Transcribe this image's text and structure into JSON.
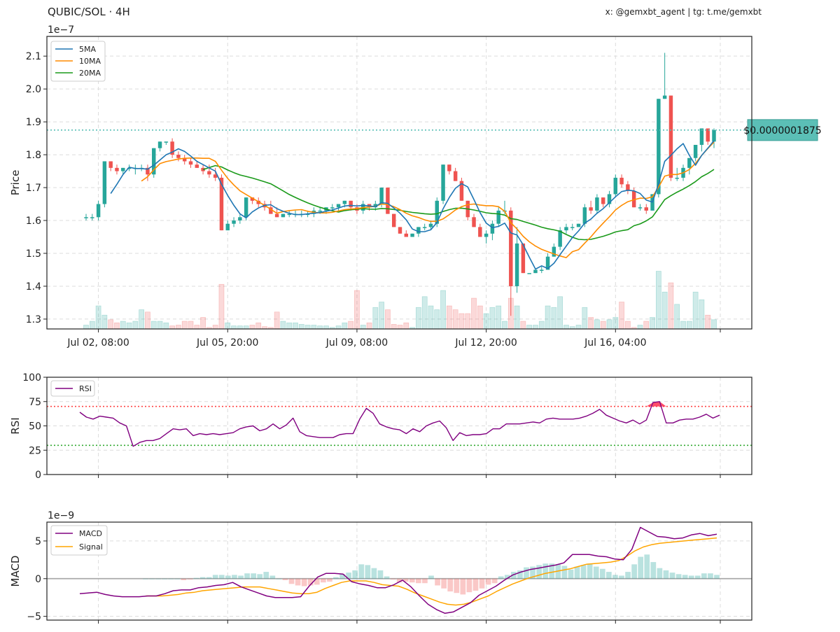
{
  "header": {
    "title": "QUBIC/SOL · 4H",
    "credits": "x: @gemxbt_agent | tg: t.me/gemxbt"
  },
  "colors": {
    "up": "#26a69a",
    "down": "#ef5350",
    "ma5": "#1f77b4",
    "ma10": "#ff8c00",
    "ma20": "#1a9a1a",
    "rsi": "#800080",
    "macd": "#800080",
    "signal": "#ffa500",
    "last_price": "#5bbfb6",
    "overbought": "#ff4444",
    "oversold": "#33aa33"
  },
  "chart_data": [
    {
      "type": "candlestick",
      "panel": "price",
      "ylabel": "Price",
      "exponent_label": "1e−7",
      "ylim": [
        1.27,
        2.16
      ],
      "yticks": [
        1.3,
        1.4,
        1.5,
        1.6,
        1.7,
        1.8,
        1.9,
        2.0,
        2.1
      ],
      "x_tick_labels": [
        "Jul 02, 08:00",
        "Jul 05, 20:00",
        "Jul 09, 08:00",
        "Jul 12, 20:00",
        "Jul 16, 04:00"
      ],
      "x_tick_index": [
        2,
        23,
        44,
        65,
        86
      ],
      "grid": true,
      "legend_position": "top-left",
      "legend": [
        "5MA",
        "10MA",
        "20MA"
      ],
      "last_price": 1.875,
      "last_price_label": "$0.0000001875",
      "candles": [
        [
          1.61,
          1.62,
          1.6,
          1.61
        ],
        [
          1.61,
          1.62,
          1.6,
          1.61
        ],
        [
          1.61,
          1.66,
          1.6,
          1.65
        ],
        [
          1.65,
          1.78,
          1.64,
          1.78
        ],
        [
          1.78,
          1.78,
          1.75,
          1.76
        ],
        [
          1.76,
          1.77,
          1.74,
          1.75
        ],
        [
          1.75,
          1.76,
          1.74,
          1.76
        ],
        [
          1.76,
          1.77,
          1.75,
          1.76
        ],
        [
          1.76,
          1.77,
          1.74,
          1.76
        ],
        [
          1.76,
          1.77,
          1.75,
          1.76
        ],
        [
          1.76,
          1.77,
          1.72,
          1.74
        ],
        [
          1.74,
          1.82,
          1.73,
          1.82
        ],
        [
          1.82,
          1.84,
          1.81,
          1.84
        ],
        [
          1.84,
          1.84,
          1.83,
          1.84
        ],
        [
          1.84,
          1.85,
          1.79,
          1.8
        ],
        [
          1.8,
          1.81,
          1.78,
          1.79
        ],
        [
          1.79,
          1.8,
          1.77,
          1.78
        ],
        [
          1.78,
          1.79,
          1.76,
          1.77
        ],
        [
          1.77,
          1.78,
          1.76,
          1.76
        ],
        [
          1.76,
          1.77,
          1.74,
          1.75
        ],
        [
          1.75,
          1.77,
          1.73,
          1.74
        ],
        [
          1.74,
          1.76,
          1.72,
          1.73
        ],
        [
          1.73,
          1.74,
          1.57,
          1.57
        ],
        [
          1.57,
          1.6,
          1.57,
          1.59
        ],
        [
          1.59,
          1.61,
          1.58,
          1.6
        ],
        [
          1.6,
          1.62,
          1.59,
          1.61
        ],
        [
          1.61,
          1.67,
          1.6,
          1.67
        ],
        [
          1.67,
          1.67,
          1.65,
          1.66
        ],
        [
          1.66,
          1.67,
          1.64,
          1.65
        ],
        [
          1.65,
          1.66,
          1.63,
          1.64
        ],
        [
          1.64,
          1.66,
          1.62,
          1.62
        ],
        [
          1.62,
          1.64,
          1.61,
          1.61
        ],
        [
          1.61,
          1.62,
          1.61,
          1.62
        ],
        [
          1.62,
          1.63,
          1.61,
          1.62
        ],
        [
          1.62,
          1.63,
          1.61,
          1.62
        ],
        [
          1.62,
          1.63,
          1.61,
          1.62
        ],
        [
          1.62,
          1.63,
          1.61,
          1.62
        ],
        [
          1.62,
          1.64,
          1.61,
          1.63
        ],
        [
          1.63,
          1.64,
          1.62,
          1.63
        ],
        [
          1.63,
          1.64,
          1.62,
          1.64
        ],
        [
          1.64,
          1.65,
          1.63,
          1.64
        ],
        [
          1.64,
          1.65,
          1.63,
          1.65
        ],
        [
          1.65,
          1.66,
          1.64,
          1.66
        ],
        [
          1.66,
          1.66,
          1.63,
          1.64
        ],
        [
          1.64,
          1.65,
          1.62,
          1.63
        ],
        [
          1.63,
          1.66,
          1.62,
          1.65
        ],
        [
          1.65,
          1.65,
          1.63,
          1.64
        ],
        [
          1.64,
          1.66,
          1.63,
          1.65
        ],
        [
          1.65,
          1.7,
          1.64,
          1.7
        ],
        [
          1.7,
          1.7,
          1.62,
          1.62
        ],
        [
          1.62,
          1.62,
          1.58,
          1.58
        ],
        [
          1.58,
          1.58,
          1.56,
          1.56
        ],
        [
          1.56,
          1.57,
          1.55,
          1.55
        ],
        [
          1.55,
          1.56,
          1.55,
          1.56
        ],
        [
          1.56,
          1.58,
          1.55,
          1.58
        ],
        [
          1.58,
          1.59,
          1.57,
          1.58
        ],
        [
          1.58,
          1.6,
          1.57,
          1.59
        ],
        [
          1.59,
          1.67,
          1.58,
          1.66
        ],
        [
          1.66,
          1.77,
          1.65,
          1.77
        ],
        [
          1.77,
          1.77,
          1.74,
          1.75
        ],
        [
          1.75,
          1.76,
          1.72,
          1.72
        ],
        [
          1.72,
          1.73,
          1.66,
          1.66
        ],
        [
          1.66,
          1.66,
          1.6,
          1.61
        ],
        [
          1.61,
          1.62,
          1.58,
          1.58
        ],
        [
          1.58,
          1.59,
          1.55,
          1.55
        ],
        [
          1.55,
          1.57,
          1.53,
          1.56
        ],
        [
          1.56,
          1.6,
          1.54,
          1.59
        ],
        [
          1.59,
          1.64,
          1.58,
          1.63
        ],
        [
          1.63,
          1.66,
          1.62,
          1.63
        ],
        [
          1.63,
          1.64,
          1.31,
          1.4
        ],
        [
          1.4,
          1.58,
          1.38,
          1.53
        ],
        [
          1.53,
          1.53,
          1.44,
          1.44
        ],
        [
          1.44,
          1.44,
          1.44,
          1.44
        ],
        [
          1.44,
          1.45,
          1.44,
          1.45
        ],
        [
          1.45,
          1.46,
          1.44,
          1.45
        ],
        [
          1.45,
          1.5,
          1.45,
          1.49
        ],
        [
          1.49,
          1.53,
          1.49,
          1.52
        ],
        [
          1.52,
          1.58,
          1.51,
          1.57
        ],
        [
          1.57,
          1.59,
          1.56,
          1.58
        ],
        [
          1.58,
          1.59,
          1.57,
          1.58
        ],
        [
          1.58,
          1.59,
          1.58,
          1.59
        ],
        [
          1.59,
          1.65,
          1.58,
          1.64
        ],
        [
          1.64,
          1.66,
          1.62,
          1.63
        ],
        [
          1.63,
          1.68,
          1.62,
          1.67
        ],
        [
          1.67,
          1.67,
          1.64,
          1.65
        ],
        [
          1.65,
          1.69,
          1.64,
          1.68
        ],
        [
          1.68,
          1.74,
          1.67,
          1.73
        ],
        [
          1.73,
          1.74,
          1.7,
          1.71
        ],
        [
          1.71,
          1.72,
          1.68,
          1.69
        ],
        [
          1.69,
          1.7,
          1.64,
          1.64
        ],
        [
          1.64,
          1.65,
          1.63,
          1.64
        ],
        [
          1.64,
          1.65,
          1.62,
          1.63
        ],
        [
          1.63,
          1.68,
          1.63,
          1.68
        ],
        [
          1.68,
          1.97,
          1.67,
          1.97
        ],
        [
          1.97,
          2.11,
          1.97,
          1.98
        ],
        [
          1.98,
          1.98,
          1.72,
          1.73
        ],
        [
          1.73,
          1.76,
          1.72,
          1.73
        ],
        [
          1.73,
          1.77,
          1.72,
          1.76
        ],
        [
          1.76,
          1.79,
          1.74,
          1.79
        ],
        [
          1.79,
          1.83,
          1.78,
          1.83
        ],
        [
          1.83,
          1.88,
          1.81,
          1.88
        ],
        [
          1.88,
          1.88,
          1.83,
          1.84
        ],
        [
          1.84,
          1.88,
          1.82,
          1.875
        ]
      ],
      "volume_rel": [
        0.05,
        0.1,
        0.3,
        0.18,
        0.12,
        0.08,
        0.1,
        0.08,
        0.1,
        0.25,
        0.22,
        0.1,
        0.1,
        0.08,
        0.04,
        0.05,
        0.1,
        0.1,
        0.05,
        0.15,
        0.02,
        0.05,
        0.58,
        0.08,
        0.04,
        0.04,
        0.04,
        0.05,
        0.08,
        0.03,
        0.02,
        0.22,
        0.1,
        0.08,
        0.08,
        0.06,
        0.05,
        0.05,
        0.04,
        0.04,
        0.02,
        0.04,
        0.08,
        0.1,
        0.5,
        0.05,
        0.08,
        0.28,
        0.35,
        0.25,
        0.06,
        0.05,
        0.08,
        0.02,
        0.28,
        0.42,
        0.3,
        0.25,
        0.5,
        0.3,
        0.25,
        0.2,
        0.2,
        0.4,
        0.3,
        0.2,
        0.28,
        0.3,
        0.1,
        0.4,
        0.3,
        0.1,
        0.05,
        0.05,
        0.1,
        0.3,
        0.28,
        0.42,
        0.05,
        0.03,
        0.05,
        0.28,
        0.15,
        0.12,
        0.1,
        0.12,
        0.15,
        0.35,
        0.1,
        0.02,
        0.05,
        0.1,
        0.15,
        0.75,
        0.48,
        0.6,
        0.32,
        0.1,
        0.1,
        0.48,
        0.38,
        0.18,
        0.12
      ]
    },
    {
      "type": "line",
      "panel": "rsi",
      "ylabel": "RSI",
      "ylim": [
        0,
        100
      ],
      "yticks": [
        0,
        25,
        50,
        75,
        100
      ],
      "overbought": 70,
      "oversold": 30,
      "grid": true,
      "legend_position": "top-left",
      "series": [
        {
          "name": "RSI",
          "values": [
            64,
            59,
            57,
            60,
            59,
            58,
            53,
            50,
            29,
            33,
            35,
            35,
            37,
            42,
            47,
            46,
            47,
            40,
            42,
            41,
            42,
            41,
            42,
            43,
            47,
            49,
            50,
            45,
            47,
            52,
            47,
            51,
            58,
            44,
            40,
            39,
            38,
            38,
            38,
            41,
            42,
            42,
            57,
            68,
            63,
            52,
            49,
            47,
            46,
            42,
            47,
            44,
            50,
            53,
            55,
            48,
            35,
            43,
            40,
            41,
            41,
            42,
            47,
            47,
            52,
            52,
            52,
            53,
            54,
            53,
            57,
            58,
            57,
            57,
            57,
            58,
            60,
            63,
            67,
            61,
            58,
            55,
            53,
            56,
            52,
            56,
            74,
            75,
            53,
            53,
            56,
            57,
            57,
            59,
            62,
            58,
            61
          ]
        }
      ]
    },
    {
      "type": "line",
      "panel": "macd",
      "ylabel": "MACD",
      "exponent_label": "1e−9",
      "ylim": [
        -5.5,
        7.5
      ],
      "yticks": [
        -5,
        0,
        5
      ],
      "grid": true,
      "legend_position": "top-left",
      "series": [
        {
          "name": "MACD",
          "values": [
            -2.0,
            -1.9,
            -1.8,
            -2.1,
            -2.3,
            -2.4,
            -2.4,
            -2.4,
            -2.3,
            -2.3,
            -2.0,
            -1.6,
            -1.5,
            -1.5,
            -1.2,
            -1.1,
            -0.9,
            -0.8,
            -0.5,
            -1.1,
            -1.5,
            -1.9,
            -2.3,
            -2.5,
            -2.5,
            -2.5,
            -2.4,
            -1.0,
            0.2,
            0.7,
            0.7,
            0.6,
            -0.4,
            -0.7,
            -0.9,
            -1.2,
            -1.2,
            -0.8,
            -0.2,
            -1.1,
            -2.3,
            -3.4,
            -4.1,
            -4.6,
            -4.4,
            -3.8,
            -3.2,
            -2.2,
            -1.6,
            -1.0,
            -0.2,
            0.5,
            0.9,
            1.2,
            1.4,
            1.6,
            1.8,
            2.1,
            3.2,
            3.2,
            3.2,
            3.0,
            2.9,
            2.6,
            2.5,
            3.9,
            6.8,
            6.2,
            5.6,
            5.5,
            5.3,
            5.4,
            5.8,
            6.0,
            5.7,
            5.9
          ]
        },
        {
          "name": "Signal",
          "values": [
            -2.3,
            -2.3,
            -2.3,
            -2.2,
            -2.1,
            -1.9,
            -1.8,
            -1.6,
            -1.5,
            -1.4,
            -1.3,
            -1.2,
            -1.1,
            -1.1,
            -1.1,
            -1.3,
            -1.5,
            -1.7,
            -1.9,
            -2.0,
            -2.0,
            -1.8,
            -1.3,
            -0.9,
            -0.5,
            -0.3,
            -0.3,
            -0.3,
            -0.5,
            -0.8,
            -0.9,
            -1.0,
            -1.4,
            -1.9,
            -2.3,
            -2.7,
            -3.1,
            -3.4,
            -3.5,
            -3.4,
            -3.1,
            -2.7,
            -2.3,
            -1.7,
            -1.2,
            -0.7,
            -0.3,
            0.1,
            0.4,
            0.7,
            0.9,
            1.1,
            1.3,
            1.6,
            1.9,
            2.0,
            2.1,
            2.2,
            2.4,
            3.0,
            3.7,
            4.2,
            4.5,
            4.7,
            4.8,
            4.9,
            5.0,
            5.1,
            5.2,
            5.3,
            5.4
          ]
        },
        {
          "name": "Histogram",
          "values": [
            0.0,
            0.0,
            0.0,
            0.0,
            0.0,
            0.0,
            -0.2,
            -0.1,
            0.1,
            0.2,
            0.2,
            0.5,
            0.5,
            0.4,
            0.5,
            0.4,
            0.7,
            0.7,
            0.6,
            0.9,
            0.4,
            0.0,
            -0.2,
            -0.7,
            -0.9,
            -1.0,
            -0.9,
            -0.8,
            -0.5,
            -0.4,
            0.2,
            0.6,
            0.8,
            1.1,
            1.9,
            1.8,
            1.4,
            1.1,
            0.3,
            -0.1,
            -0.5,
            -0.4,
            -0.5,
            -0.6,
            -0.6,
            0.4,
            -0.9,
            -1.3,
            -1.7,
            -1.9,
            -2.1,
            -1.8,
            -1.6,
            -1.3,
            -0.8,
            -0.6,
            0.3,
            0.5,
            0.9,
            1.1,
            1.5,
            1.6,
            1.8,
            2.0,
            2.0,
            1.9,
            1.7,
            1.2,
            1.6,
            1.8,
            2.0,
            1.6,
            1.3,
            0.9,
            0.5,
            0.4,
            0.9,
            1.9,
            2.9,
            3.2,
            2.2,
            1.4,
            1.1,
            0.8,
            0.6,
            0.5,
            0.4,
            0.4,
            0.7,
            0.7,
            0.5
          ]
        }
      ]
    }
  ]
}
